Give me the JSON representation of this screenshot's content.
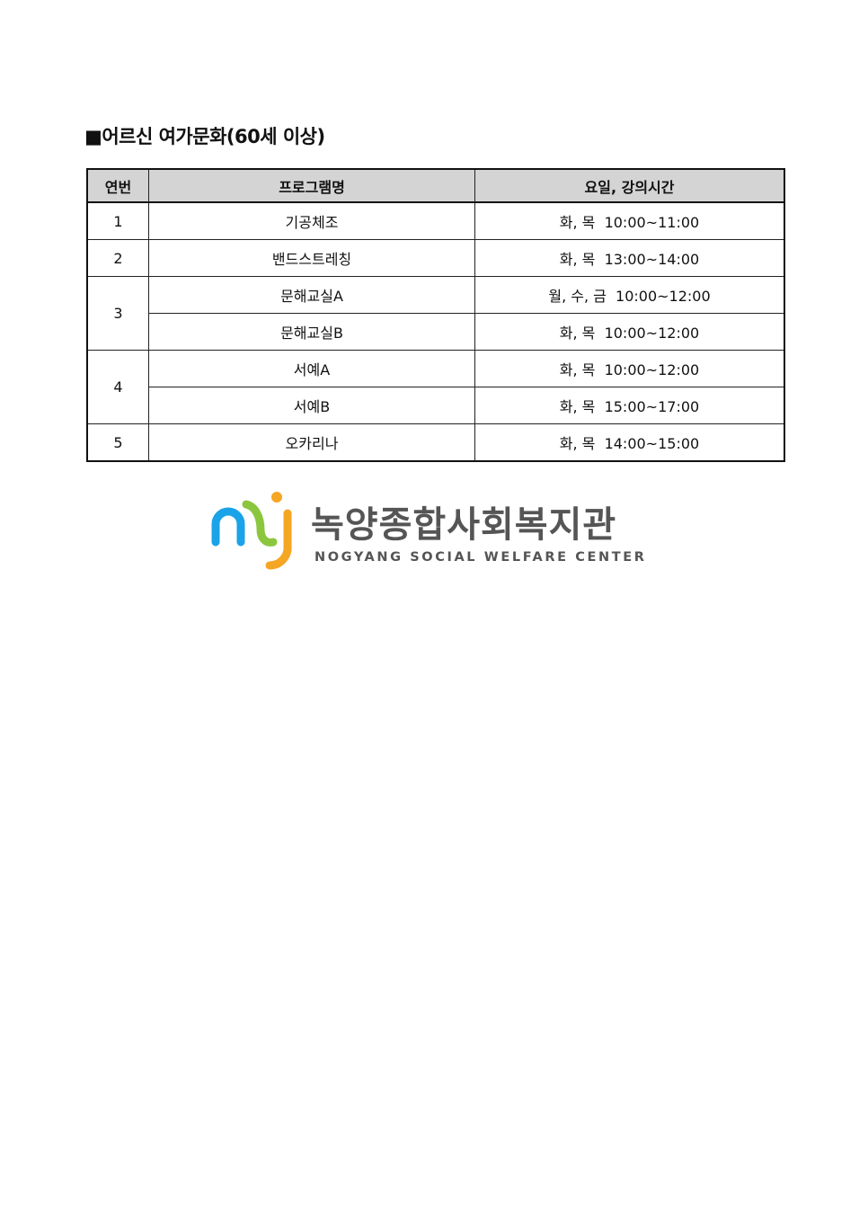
{
  "title": "■어르신 여가문화(60세 이상)",
  "table": {
    "headers": [
      "연번",
      "프로그램명",
      "요일, 강의시간"
    ],
    "groups": [
      {
        "no": "1",
        "rows": [
          {
            "program": "기공체조",
            "schedule": "화, 목  10:00~11:00"
          }
        ]
      },
      {
        "no": "2",
        "rows": [
          {
            "program": "밴드스트레칭",
            "schedule": "화, 목  13:00~14:00"
          }
        ]
      },
      {
        "no": "3",
        "rows": [
          {
            "program": "문해교실A",
            "schedule": "월, 수, 금  10:00~12:00"
          },
          {
            "program": "문해교실B",
            "schedule": "화, 목  10:00~12:00"
          }
        ]
      },
      {
        "no": "4",
        "rows": [
          {
            "program": "서예A",
            "schedule": "화, 목  10:00~12:00"
          },
          {
            "program": "서예B",
            "schedule": "화, 목  15:00~17:00"
          }
        ]
      },
      {
        "no": "5",
        "rows": [
          {
            "program": "오카리나",
            "schedule": "화, 목  14:00~15:00"
          }
        ]
      }
    ]
  },
  "logo": {
    "korean": "녹양종합사회복지관",
    "english": "NOGYANG SOCIAL WELFARE CENTER",
    "colors": {
      "blue": "#1aa3e8",
      "green": "#8cc63f",
      "orange": "#f5a623"
    }
  }
}
